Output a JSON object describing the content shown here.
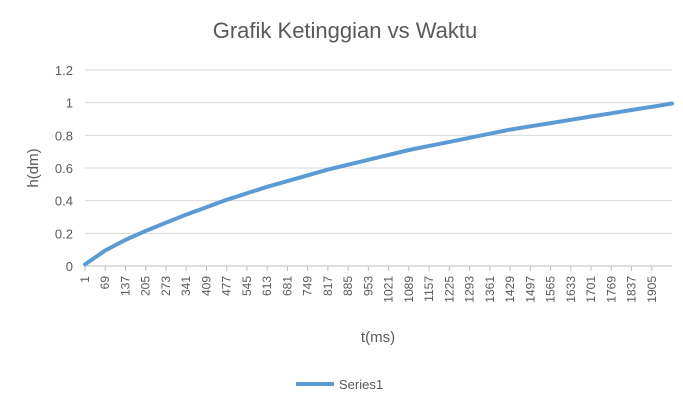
{
  "chart_data": {
    "type": "line",
    "title": "Grafik Ketinggian vs Waktu",
    "xlabel": "t(ms)",
    "ylabel": "h(dm)",
    "ylim": [
      0,
      1.2
    ],
    "y_ticks": [
      "0",
      "0.2",
      "0.4",
      "0.6",
      "0.8",
      "1",
      "1.2"
    ],
    "x_tick_labels": [
      "1",
      "69",
      "137",
      "205",
      "273",
      "341",
      "409",
      "477",
      "545",
      "613",
      "681",
      "749",
      "817",
      "885",
      "953",
      "1021",
      "1089",
      "1157",
      "1225",
      "1293",
      "1361",
      "1429",
      "1497",
      "1565",
      "1633",
      "1701",
      "1769",
      "1837",
      "1905"
    ],
    "grid": true,
    "legend_position": "bottom",
    "series": [
      {
        "name": "Series1",
        "color": "#5b9bd5",
        "x": [
          1,
          69,
          137,
          205,
          273,
          341,
          409,
          477,
          545,
          613,
          681,
          749,
          817,
          885,
          953,
          1021,
          1089,
          1157,
          1225,
          1293,
          1361,
          1429,
          1497,
          1565,
          1633,
          1701,
          1769,
          1837,
          1905,
          1973
        ],
        "y": [
          0.01,
          0.095,
          0.16,
          0.215,
          0.265,
          0.315,
          0.36,
          0.405,
          0.445,
          0.485,
          0.52,
          0.555,
          0.59,
          0.62,
          0.65,
          0.68,
          0.71,
          0.735,
          0.76,
          0.785,
          0.81,
          0.835,
          0.855,
          0.875,
          0.895,
          0.915,
          0.935,
          0.955,
          0.975,
          0.995
        ]
      }
    ]
  }
}
